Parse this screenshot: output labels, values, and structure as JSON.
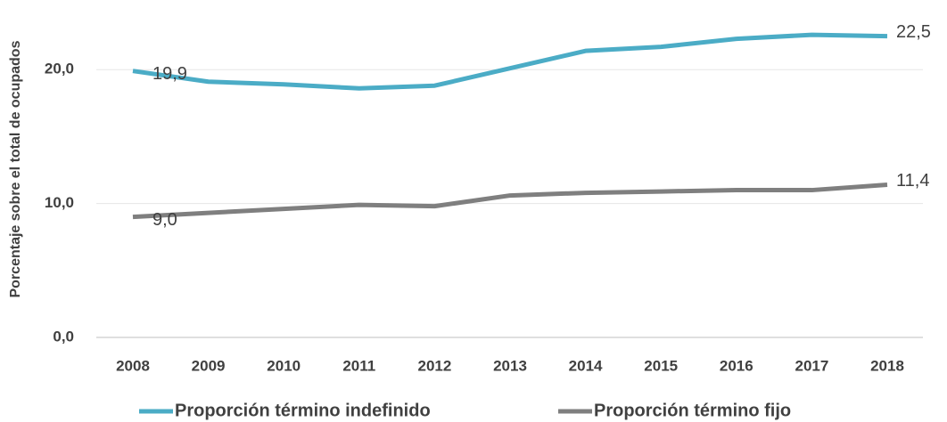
{
  "chart_data": {
    "type": "line",
    "y_label": "Porcentaje sobre el total de ocupados",
    "categories": [
      "2008",
      "2009",
      "2010",
      "2011",
      "2012",
      "2013",
      "2014",
      "2015",
      "2016",
      "2017",
      "2018"
    ],
    "series": [
      {
        "name": "Proporción término indefinido",
        "color": "#4bacc6",
        "values": [
          19.9,
          19.1,
          18.9,
          18.6,
          18.8,
          20.1,
          21.4,
          21.7,
          22.3,
          22.6,
          22.5
        ],
        "value_labels": [
          "19,9",
          null,
          null,
          null,
          null,
          null,
          null,
          null,
          null,
          null,
          "22,5"
        ]
      },
      {
        "name": "Proporción término fijo",
        "color": "#7f7f7f",
        "values": [
          9.0,
          9.3,
          9.6,
          9.9,
          9.8,
          10.6,
          10.8,
          10.9,
          11.0,
          11.0,
          11.4
        ],
        "value_labels": [
          "9,0",
          null,
          null,
          null,
          null,
          null,
          null,
          null,
          null,
          null,
          "11,4"
        ]
      }
    ],
    "ylim": [
      0,
      25
    ],
    "yticks": [
      {
        "value": 0,
        "label": "0,0"
      },
      {
        "value": 10,
        "label": "10,0"
      },
      {
        "value": 20,
        "label": "20,0"
      }
    ],
    "grid": true,
    "legend": "bottom"
  }
}
